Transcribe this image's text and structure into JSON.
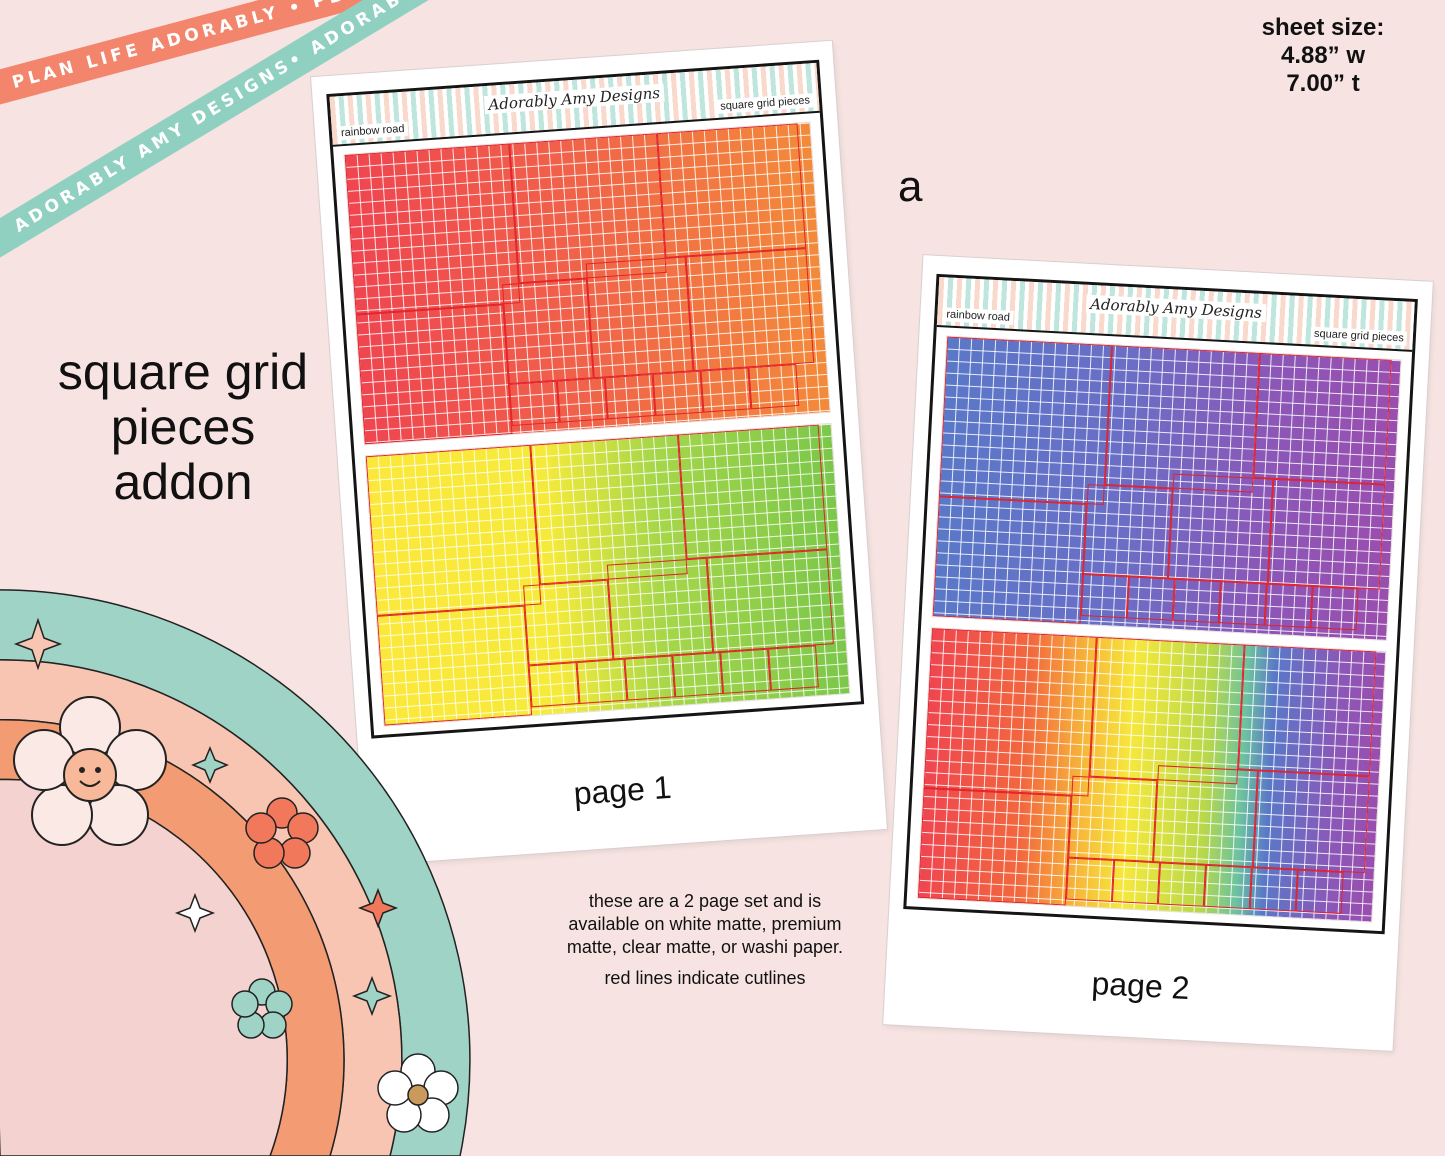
{
  "ribbons": {
    "top": "PLAN LIFE ADORABLY • PLAN LIFE ADORABLY •",
    "bottom": "ADORABLY AMY DESIGNS• ADORABLY AMY DESIGNS• AD"
  },
  "title": {
    "line1": "square grid",
    "line2": "pieces",
    "line3": "addon"
  },
  "sheet_size": {
    "label": "sheet size:",
    "width": "4.88” w",
    "height": "7.00” t"
  },
  "variant_badge": "a",
  "pages": [
    {
      "caption": "page 1",
      "header_left": "rainbow road",
      "header_logo": "Adorably Amy Designs",
      "header_right": "square grid pieces"
    },
    {
      "caption": "page 2",
      "header_left": "rainbow road",
      "header_logo": "Adorably Amy Designs",
      "header_right": "square grid pieces"
    }
  ],
  "info": {
    "line1": "these are a 2 page set and is available on white matte, premium matte, clear matte, or washi paper.",
    "line2": "red lines indicate cutlines"
  },
  "colors": {
    "background": "#f7e4e2",
    "ribbon_coral": "#f2856c",
    "ribbon_mint": "#8fd0c0",
    "cutline": "#e2232b"
  }
}
